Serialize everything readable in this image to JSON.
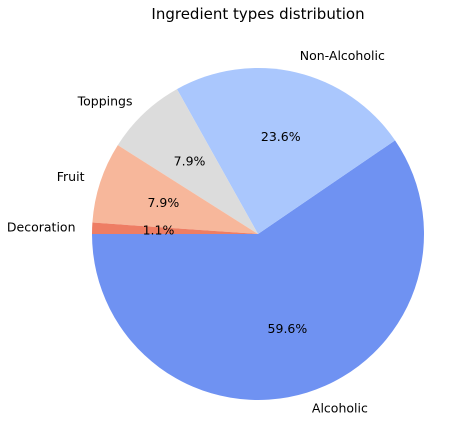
{
  "chart_data": {
    "type": "pie",
    "title": "Ingredient types distribution",
    "slices": [
      {
        "label": "Alcoholic",
        "value": 59.6,
        "pct_label": "59.6%",
        "color": "#6f92f2"
      },
      {
        "label": "Non-Alcoholic",
        "value": 23.6,
        "pct_label": "23.6%",
        "color": "#aac7fd"
      },
      {
        "label": "Toppings",
        "value": 7.9,
        "pct_label": "7.9%",
        "color": "#dcdcdc"
      },
      {
        "label": "Fruit",
        "value": 7.9,
        "pct_label": "7.9%",
        "color": "#f7b79b"
      },
      {
        "label": "Decoration",
        "value": 1.1,
        "pct_label": "1.1%",
        "color": "#ee7d64"
      }
    ],
    "start_angle_deg": 180,
    "direction": "counterclockwise"
  }
}
